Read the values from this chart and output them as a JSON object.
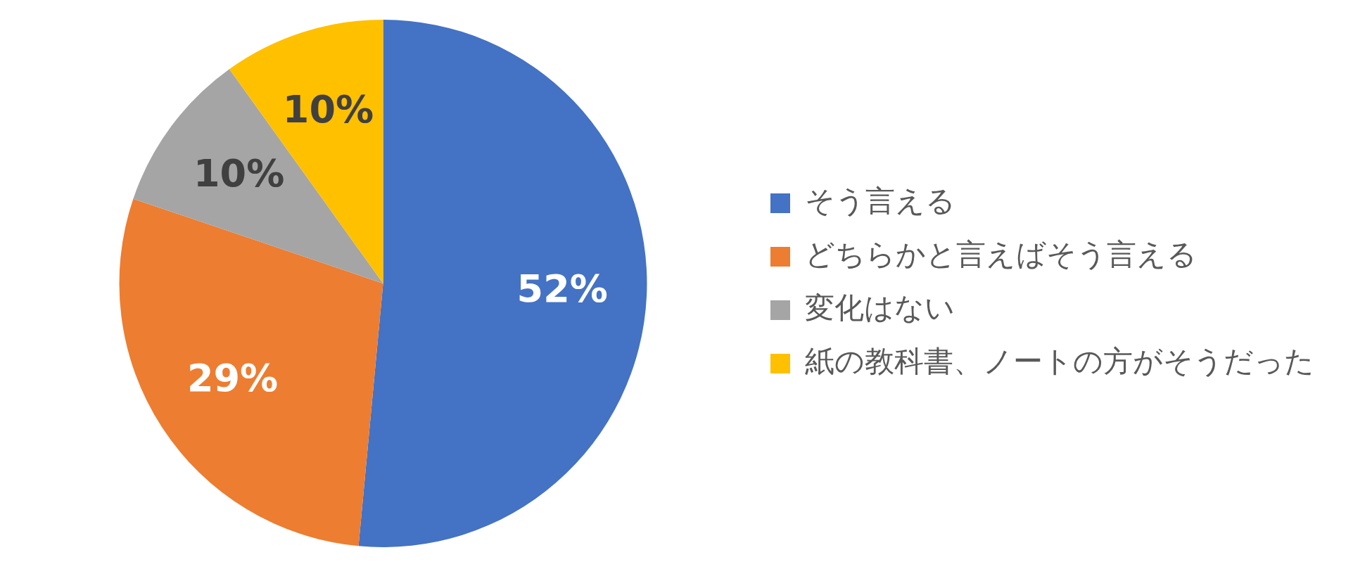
{
  "chart_data": {
    "type": "pie",
    "categories": [
      "そう言える",
      "どちらかと言えばそう言える",
      "変化はない",
      "紙の教科書、ノートの方がそうだった"
    ],
    "values": [
      52,
      29,
      10,
      10
    ],
    "colors": [
      "#4472c4",
      "#ed7d31",
      "#a5a5a5",
      "#ffc000"
    ],
    "value_labels": [
      "52%",
      "29%",
      "10%",
      "10%"
    ],
    "legend": "right"
  }
}
